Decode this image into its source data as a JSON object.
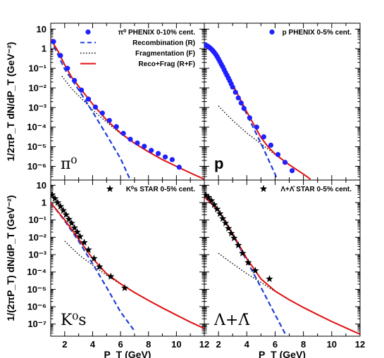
{
  "chart_data": {
    "type": "scatter",
    "x_ticks": [
      2,
      4,
      6,
      8,
      10,
      12
    ],
    "x_tick_labels": [
      "2",
      "4",
      "6",
      "8",
      "10",
      "12"
    ],
    "top_y_tick_labels": [
      "10",
      "1",
      "10⁻¹",
      "10⁻²",
      "10⁻³",
      "10⁻⁴",
      "10⁻⁵",
      "10⁻⁶"
    ],
    "bottom_y_tick_labels": [
      "10",
      "1",
      "10⁻¹",
      "10⁻²",
      "10⁻³",
      "10⁻⁴",
      "10⁻⁵",
      "10⁻⁶",
      "10⁻⁷"
    ],
    "top_ylabel": "1/2πP_T dN/dP_T (GeV⁻²)",
    "bottom_ylabel": "1/(2πP_T) dN/dP_T (GeV⁻²)",
    "xlabel": "P_T (GeV)",
    "colors": {
      "data_marker": "#1f1fff",
      "recombination": "#1f3fd6",
      "fragmentation": "#000000",
      "total": "#e01010"
    },
    "panels": [
      {
        "id": "pi0",
        "label": "π⁰",
        "xlim": [
          1,
          12
        ],
        "ylog": [
          -6.7,
          1.3
        ],
        "legend": [
          "π⁰ PHENIX 0-10% cent.",
          "Recombination (R)",
          "Fragmentation (F)",
          "Reco+Frag (R+F)"
        ],
        "data_marker": "circle",
        "data": [
          [
            1.2,
            2.3
          ],
          [
            1.7,
            0.45
          ],
          [
            2.2,
            0.1
          ],
          [
            2.7,
            0.024
          ],
          [
            3.2,
            0.0077
          ],
          [
            3.7,
            0.0027
          ],
          [
            4.2,
            0.00105
          ],
          [
            4.7,
            0.00052
          ],
          [
            5.2,
            0.00022
          ],
          [
            5.7,
            0.000105
          ],
          [
            6.2,
            4.8e-05
          ],
          [
            6.7,
            2.4e-05
          ],
          [
            7.2,
            1.55e-05
          ],
          [
            7.7,
            1.05e-05
          ],
          [
            8.2,
            6.5e-06
          ],
          [
            8.7,
            4.5e-06
          ],
          [
            9.2,
            3e-06
          ],
          [
            9.7,
            2.2e-06
          ],
          [
            10.2,
            9e-07
          ]
        ],
        "curves": {
          "recombination": [
            [
              1.0,
              3.0
            ],
            [
              2.0,
              0.09
            ],
            [
              3.0,
              0.008
            ],
            [
              4.0,
              0.0006
            ],
            [
              5.0,
              4e-05
            ],
            [
              6.0,
              2.5e-06
            ],
            [
              6.7,
              2e-07
            ]
          ],
          "fragmentation": [
            [
              1.8,
              0.04
            ],
            [
              2.5,
              0.009
            ],
            [
              3.0,
              0.004
            ],
            [
              4.0,
              0.00075
            ],
            [
              5.0,
              0.00018
            ],
            [
              6.0,
              4.6e-05
            ],
            [
              7.0,
              1.5e-05
            ],
            [
              8.0,
              5.5e-06
            ],
            [
              9.0,
              2.2e-06
            ],
            [
              10.0,
              1e-06
            ],
            [
              11.0,
              4.6e-07
            ],
            [
              12.0,
              2.2e-07
            ]
          ],
          "total": [
            [
              1.0,
              3.0
            ],
            [
              1.5,
              0.8
            ],
            [
              2.0,
              0.15
            ],
            [
              2.5,
              0.035
            ],
            [
              3.0,
              0.012
            ],
            [
              4.0,
              0.0015
            ],
            [
              5.0,
              0.00023
            ],
            [
              6.0,
              5e-05
            ],
            [
              7.0,
              1.5e-05
            ],
            [
              8.0,
              5.5e-06
            ],
            [
              9.0,
              2.2e-06
            ],
            [
              10.0,
              1e-06
            ],
            [
              11.0,
              4.6e-07
            ],
            [
              12.0,
              2.2e-07
            ]
          ]
        }
      },
      {
        "id": "p",
        "label": "p",
        "xlim": [
          1,
          12
        ],
        "ylog": [
          -6.7,
          1.3
        ],
        "legend": [
          "p PHENIX 0-5% cent."
        ],
        "data_marker": "circle",
        "data": [
          [
            1.0,
            1.6
          ],
          [
            1.1,
            1.5
          ],
          [
            1.2,
            1.4
          ],
          [
            1.3,
            1.25
          ],
          [
            1.4,
            1.1
          ],
          [
            1.5,
            0.95
          ],
          [
            1.6,
            0.8
          ],
          [
            1.7,
            0.65
          ],
          [
            1.8,
            0.52
          ],
          [
            1.9,
            0.4
          ],
          [
            2.0,
            0.3
          ],
          [
            2.1,
            0.22
          ],
          [
            2.2,
            0.16
          ],
          [
            2.3,
            0.12
          ],
          [
            2.4,
            0.085
          ],
          [
            2.5,
            0.06
          ],
          [
            2.6,
            0.044
          ],
          [
            2.7,
            0.032
          ],
          [
            2.8,
            0.023
          ],
          [
            2.9,
            0.016
          ],
          [
            3.0,
            0.011
          ],
          [
            3.2,
            0.006
          ],
          [
            3.4,
            0.0031
          ],
          [
            3.6,
            0.0017
          ],
          [
            3.8,
            0.0009
          ],
          [
            4.2,
            0.0003
          ],
          [
            4.7,
            0.0001
          ],
          [
            5.2,
            3.2e-05
          ],
          [
            5.7,
            1.2e-05
          ],
          [
            6.2,
            4e-06
          ],
          [
            6.7,
            1.6e-06
          ],
          [
            7.2,
            6e-07
          ]
        ],
        "curves": {
          "recombination": [
            [
              1.0,
              1.7
            ],
            [
              2.0,
              0.3
            ],
            [
              3.0,
              0.014
            ],
            [
              4.0,
              0.00045
            ],
            [
              5.0,
              1.5e-05
            ],
            [
              6.0,
              4e-07
            ],
            [
              6.5,
              5e-08
            ]
          ],
          "fragmentation": [
            [
              2.0,
              0.0012
            ],
            [
              2.5,
              0.0005
            ],
            [
              3.0,
              0.00022
            ],
            [
              4.0,
              5e-05
            ],
            [
              5.0,
              1.4e-05
            ],
            [
              6.0,
              4e-06
            ],
            [
              7.0,
              1.2e-06
            ],
            [
              8.0,
              4e-07
            ],
            [
              8.5,
              2.2e-07
            ]
          ],
          "total": [
            [
              1.0,
              1.7
            ],
            [
              1.5,
              0.9
            ],
            [
              2.0,
              0.3
            ],
            [
              2.5,
              0.08
            ],
            [
              3.0,
              0.015
            ],
            [
              4.0,
              0.0006
            ],
            [
              5.0,
              3e-05
            ],
            [
              5.5,
              1e-05
            ],
            [
              6.0,
              4.2e-06
            ],
            [
              7.0,
              1.2e-06
            ],
            [
              8.0,
              4e-07
            ],
            [
              8.5,
              2.2e-07
            ]
          ]
        }
      },
      {
        "id": "K0s",
        "label": "K⁰s",
        "xlim": [
          1,
          12
        ],
        "ylog": [
          -7.7,
          1.3
        ],
        "legend": [
          "K⁰s STAR 0-5% cent."
        ],
        "data_marker": "star",
        "data": [
          [
            1.1,
            2.8
          ],
          [
            1.3,
            1.7
          ],
          [
            1.5,
            1.0
          ],
          [
            1.7,
            0.6
          ],
          [
            1.9,
            0.35
          ],
          [
            2.1,
            0.2
          ],
          [
            2.3,
            0.11
          ],
          [
            2.5,
            0.065
          ],
          [
            2.7,
            0.035
          ],
          [
            2.9,
            0.02
          ],
          [
            3.1,
            0.011
          ],
          [
            3.4,
            0.005
          ],
          [
            3.7,
            0.0019
          ],
          [
            4.1,
            0.0006
          ],
          [
            4.5,
            0.0002
          ],
          [
            5.3,
            5.5e-05
          ],
          [
            6.3,
            1.2e-05
          ]
        ],
        "curves": {
          "recombination": [
            [
              1.0,
              1.0
            ],
            [
              2.0,
              0.09
            ],
            [
              3.0,
              0.006
            ],
            [
              4.0,
              0.0003
            ],
            [
              5.0,
              1.3e-05
            ],
            [
              6.0,
              5e-07
            ],
            [
              7.0,
              4e-08
            ]
          ],
          "fragmentation": [
            [
              2.0,
              0.006
            ],
            [
              3.0,
              0.001
            ],
            [
              4.0,
              0.00025
            ],
            [
              5.0,
              6.5e-05
            ],
            [
              6.0,
              2e-05
            ],
            [
              7.0,
              6.5e-06
            ],
            [
              8.0,
              2.3e-06
            ],
            [
              9.0,
              8.5e-07
            ],
            [
              10.0,
              3.3e-07
            ],
            [
              11.0,
              1.3e-07
            ],
            [
              12.0,
              5.5e-08
            ]
          ],
          "total": [
            [
              1.0,
              1.0
            ],
            [
              2.0,
              0.1
            ],
            [
              3.0,
              0.008
            ],
            [
              4.0,
              0.0006
            ],
            [
              5.0,
              8e-05
            ],
            [
              6.0,
              2.1e-05
            ],
            [
              7.0,
              6.6e-06
            ],
            [
              8.0,
              2.3e-06
            ],
            [
              9.0,
              8.5e-07
            ],
            [
              10.0,
              3.3e-07
            ],
            [
              11.0,
              1.3e-07
            ],
            [
              12.0,
              5.5e-08
            ]
          ]
        }
      },
      {
        "id": "Lambda",
        "label": "Λ+Λ̄",
        "xlim": [
          1,
          12
        ],
        "ylog": [
          -7.7,
          1.3
        ],
        "legend": [
          "Λ+Λ̄ STAR 0-5% cent."
        ],
        "data_marker": "star",
        "data": [
          [
            1.1,
            2.7
          ],
          [
            1.3,
            2.0
          ],
          [
            1.5,
            1.3
          ],
          [
            1.7,
            0.75
          ],
          [
            1.9,
            0.42
          ],
          [
            2.1,
            0.23
          ],
          [
            2.3,
            0.12
          ],
          [
            2.5,
            0.065
          ],
          [
            2.7,
            0.033
          ],
          [
            2.9,
            0.017
          ],
          [
            3.1,
            0.009
          ],
          [
            3.4,
            0.0035
          ],
          [
            3.7,
            0.0012
          ],
          [
            4.1,
            0.00035
          ],
          [
            4.6,
            0.00012
          ],
          [
            5.6,
            4e-05
          ]
        ],
        "curves": {
          "recombination": [
            [
              1.0,
              2.2
            ],
            [
              2.0,
              0.35
            ],
            [
              3.0,
              0.015
            ],
            [
              4.0,
              0.00045
            ],
            [
              5.0,
              1.3e-05
            ],
            [
              6.0,
              3.5e-07
            ],
            [
              6.8,
              2e-08
            ]
          ],
          "fragmentation": [
            [
              2.0,
              0.0012
            ],
            [
              3.0,
              0.0003
            ],
            [
              4.0,
              8e-05
            ],
            [
              5.0,
              2.5e-05
            ],
            [
              6.0,
              7.5e-06
            ],
            [
              7.0,
              2.5e-06
            ],
            [
              8.0,
              9e-07
            ],
            [
              9.0,
              3.5e-07
            ],
            [
              10.0,
              1.4e-07
            ],
            [
              11.0,
              6e-08
            ],
            [
              12.0,
              2.6e-08
            ]
          ],
          "total": [
            [
              1.0,
              2.2
            ],
            [
              2.0,
              0.35
            ],
            [
              3.0,
              0.016
            ],
            [
              4.0,
              0.0006
            ],
            [
              5.0,
              4e-05
            ],
            [
              6.0,
              8e-06
            ],
            [
              7.0,
              2.5e-06
            ],
            [
              8.0,
              9e-07
            ],
            [
              9.0,
              3.5e-07
            ],
            [
              10.0,
              1.4e-07
            ],
            [
              11.0,
              6e-08
            ],
            [
              12.0,
              2.6e-08
            ]
          ]
        }
      }
    ]
  }
}
